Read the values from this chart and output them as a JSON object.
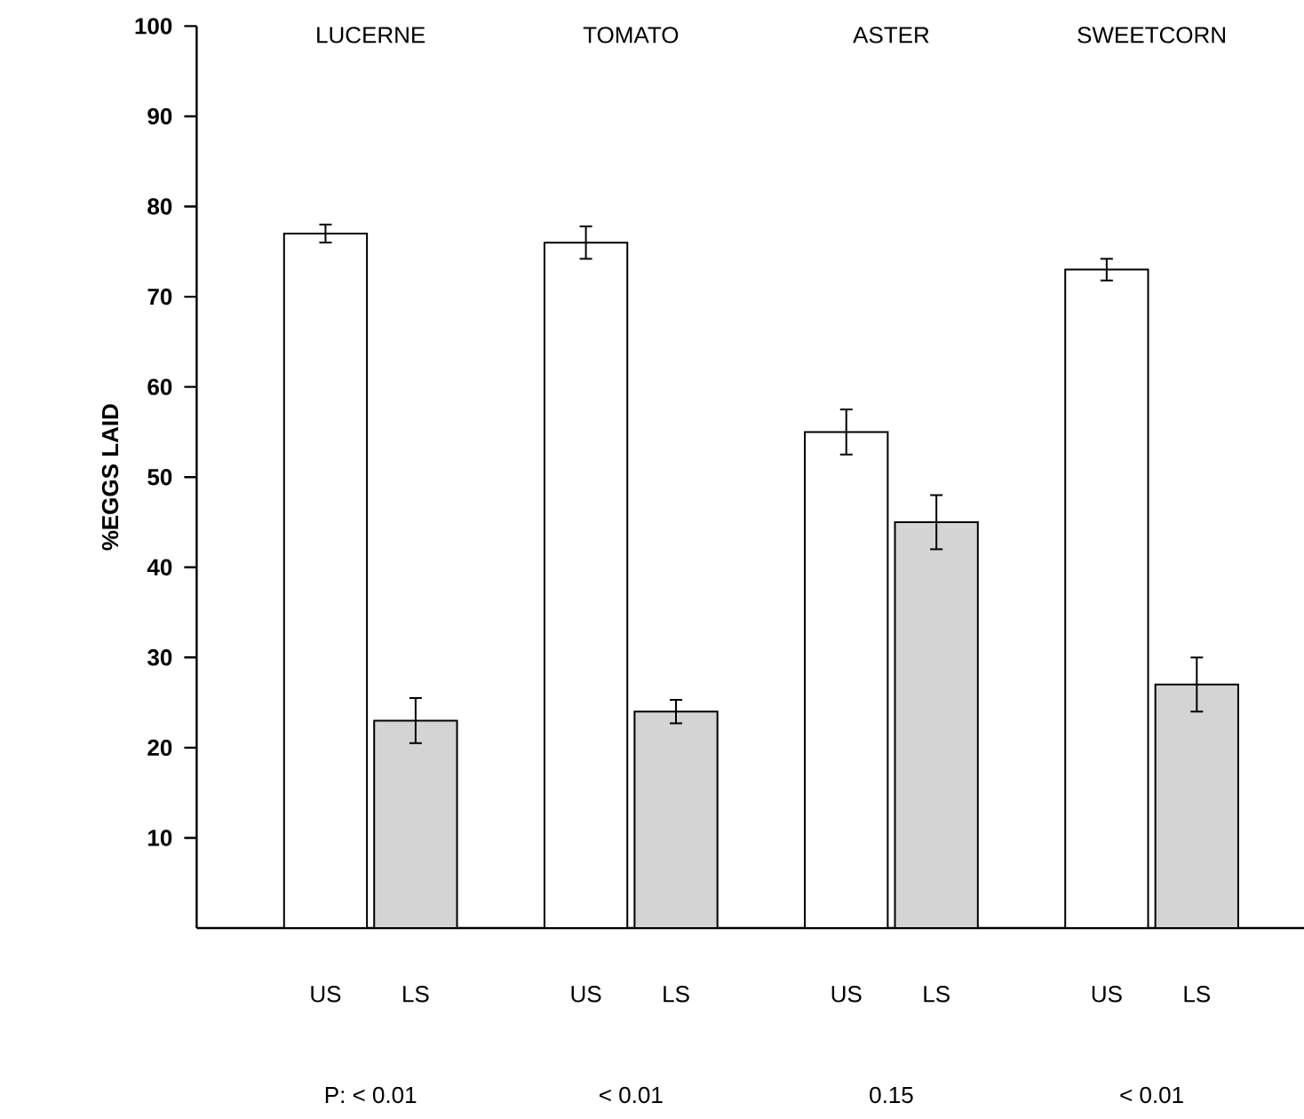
{
  "chart_data": {
    "type": "bar",
    "ylabel": "%EGGS LAID",
    "categories": [
      "US",
      "LS",
      "US",
      "LS",
      "US",
      "LS",
      "US",
      "LS"
    ],
    "values": [
      77,
      23,
      76,
      24,
      55,
      45,
      73,
      27
    ],
    "errors": [
      1,
      2.5,
      1.8,
      1.3,
      2.5,
      3,
      1.2,
      3
    ],
    "colors": [
      "#ffffff",
      "#d4d4d4",
      "#ffffff",
      "#d4d4d4",
      "#ffffff",
      "#d4d4d4",
      "#ffffff",
      "#d4d4d4"
    ],
    "ylim": [
      0,
      100
    ],
    "yticks": [
      10,
      20,
      30,
      40,
      50,
      60,
      70,
      80,
      90,
      100
    ],
    "annotations": [
      "LUCERNE",
      "TOMATO",
      "ASTER",
      "SWEETCORN",
      "P: < 0.01",
      "< 0.01",
      "0.15",
      "< 0.01"
    ]
  }
}
